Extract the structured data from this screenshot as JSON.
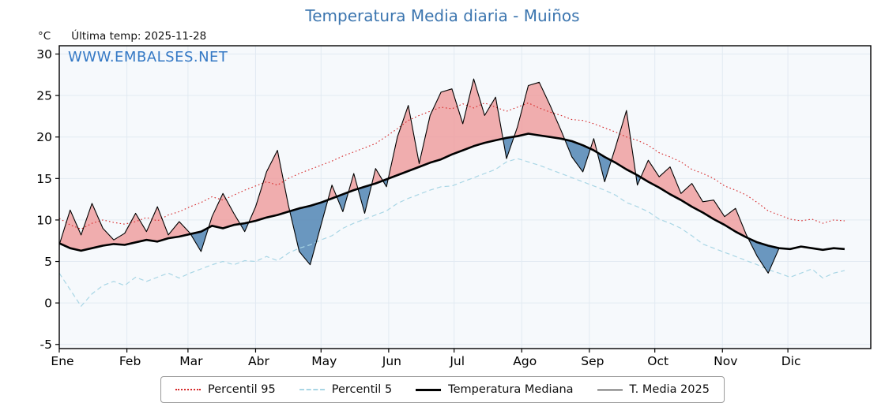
{
  "header": {
    "title": "Temperatura Media diaria - Muiños"
  },
  "axis_note": {
    "unit": "°C",
    "last_temp": "Última temp: 2025-11-28"
  },
  "watermark": "WWW.EMBALSES.NET",
  "legend": {
    "items": [
      {
        "label": "Percentil 95"
      },
      {
        "label": "Percentil 5"
      },
      {
        "label": "Temperatura Mediana"
      },
      {
        "label": "T. Media 2025"
      }
    ]
  },
  "chart_data": {
    "type": "line",
    "title": "Temperatura Media diaria - Muiños",
    "ylabel": "°C",
    "ylim": [
      -5.5,
      31
    ],
    "yticks": [
      -5,
      0,
      5,
      10,
      15,
      20,
      25,
      30
    ],
    "xlim": [
      0,
      372
    ],
    "x_unit": "day_of_year",
    "sample_step_days": 5,
    "month_labels": [
      "Ene",
      "Feb",
      "Mar",
      "Abr",
      "May",
      "Jun",
      "Jul",
      "Ago",
      "Sep",
      "Oct",
      "Nov",
      "Dic"
    ],
    "month_start_days": [
      0,
      31,
      59,
      90,
      120,
      151,
      181,
      212,
      243,
      273,
      304,
      334
    ],
    "grid": true,
    "legend_position": "bottom-center",
    "colors": {
      "title": "#3b75af",
      "watermark": "#3579c5",
      "p95": "#d62728",
      "p5": "#a9d6e5",
      "median": "#000000",
      "t2025": "#000000",
      "plot_bg": "#f6f9fc",
      "grid": "#e2eaf2"
    },
    "fills": {
      "above_median_color": "#ef9a9a",
      "above_opacity": 0.8,
      "below_median_color": "#5b8cb8",
      "below_opacity": 0.9
    },
    "series": [
      {
        "name": "Percentil 95",
        "color": "#d62728",
        "line": "dotted",
        "width": 1.1,
        "values": [
          10.2,
          9.4,
          8.9,
          9.6,
          10.0,
          9.7,
          9.5,
          9.8,
          10.3,
          9.9,
          10.6,
          11.0,
          11.6,
          12.1,
          12.8,
          12.4,
          13.0,
          13.6,
          14.1,
          14.6,
          14.2,
          15.0,
          15.6,
          16.1,
          16.6,
          17.1,
          17.7,
          18.2,
          18.7,
          19.2,
          20.1,
          21.0,
          22.0,
          22.6,
          23.1,
          23.6,
          23.4,
          24.0,
          23.5,
          24.1,
          23.6,
          23.1,
          23.6,
          24.1,
          23.5,
          23.0,
          22.6,
          22.1,
          22.0,
          21.6,
          21.1,
          20.6,
          20.0,
          19.6,
          19.0,
          18.1,
          17.6,
          17.0,
          16.1,
          15.6,
          15.0,
          14.1,
          13.6,
          13.0,
          12.1,
          11.1,
          10.6,
          10.1,
          9.9,
          10.1,
          9.6,
          10.0,
          9.9
        ]
      },
      {
        "name": "Percentil 5",
        "color": "#a9d6e5",
        "line": "dashed",
        "width": 1.2,
        "values": [
          3.6,
          1.6,
          -0.4,
          1.1,
          2.1,
          2.6,
          2.1,
          3.1,
          2.6,
          3.1,
          3.6,
          3.0,
          3.6,
          4.1,
          4.6,
          5.0,
          4.6,
          5.1,
          5.0,
          5.6,
          5.1,
          6.0,
          6.6,
          7.0,
          7.6,
          8.1,
          9.0,
          9.6,
          10.1,
          10.6,
          11.1,
          12.0,
          12.6,
          13.1,
          13.6,
          14.0,
          14.1,
          14.6,
          15.1,
          15.6,
          16.1,
          17.0,
          17.4,
          17.0,
          16.6,
          16.1,
          15.6,
          15.1,
          14.6,
          14.1,
          13.6,
          13.0,
          12.1,
          11.6,
          11.0,
          10.1,
          9.6,
          9.0,
          8.1,
          7.1,
          6.6,
          6.1,
          5.6,
          5.1,
          4.6,
          4.0,
          3.6,
          3.1,
          3.6,
          4.1,
          3.0,
          3.6,
          3.9
        ]
      },
      {
        "name": "Temperatura Mediana",
        "color": "#000000",
        "line": "solid",
        "width": 2.6,
        "values": [
          7.2,
          6.6,
          6.3,
          6.6,
          6.9,
          7.1,
          7.0,
          7.3,
          7.6,
          7.4,
          7.8,
          8.0,
          8.3,
          8.6,
          9.3,
          9.0,
          9.4,
          9.6,
          9.9,
          10.3,
          10.6,
          11.0,
          11.4,
          11.7,
          12.1,
          12.6,
          13.1,
          13.6,
          14.0,
          14.4,
          14.9,
          15.4,
          15.9,
          16.4,
          16.9,
          17.3,
          17.9,
          18.4,
          18.9,
          19.3,
          19.6,
          19.9,
          20.1,
          20.4,
          20.2,
          20.0,
          19.8,
          19.5,
          19.0,
          18.4,
          17.6,
          16.9,
          16.1,
          15.4,
          14.6,
          13.9,
          13.1,
          12.4,
          11.6,
          10.9,
          10.1,
          9.4,
          8.6,
          7.9,
          7.3,
          6.9,
          6.6,
          6.5,
          6.8,
          6.6,
          6.4,
          6.6,
          6.5
        ]
      },
      {
        "name": "T. Media 2025",
        "color": "#000000",
        "line": "solid",
        "width": 1.1,
        "values": [
          7.0,
          11.2,
          8.2,
          12.0,
          9.0,
          7.6,
          8.4,
          10.8,
          8.6,
          11.6,
          8.2,
          9.8,
          8.4,
          6.2,
          10.4,
          13.2,
          10.8,
          8.6,
          11.6,
          15.8,
          18.4,
          11.8,
          6.2,
          4.6,
          9.4,
          14.2,
          11.0,
          15.6,
          10.8,
          16.2,
          14.0,
          20.0,
          23.8,
          16.8,
          22.6,
          25.4,
          25.8,
          21.6,
          27.0,
          22.6,
          24.8,
          17.4,
          21.2,
          26.2,
          26.6,
          23.8,
          20.8,
          17.6,
          15.8,
          19.8,
          14.6,
          18.8,
          23.2,
          14.2,
          17.2,
          15.2,
          16.4,
          13.2,
          14.4,
          12.2,
          12.4,
          10.4,
          11.4,
          8.2,
          5.6,
          3.6,
          6.6
        ]
      }
    ]
  }
}
